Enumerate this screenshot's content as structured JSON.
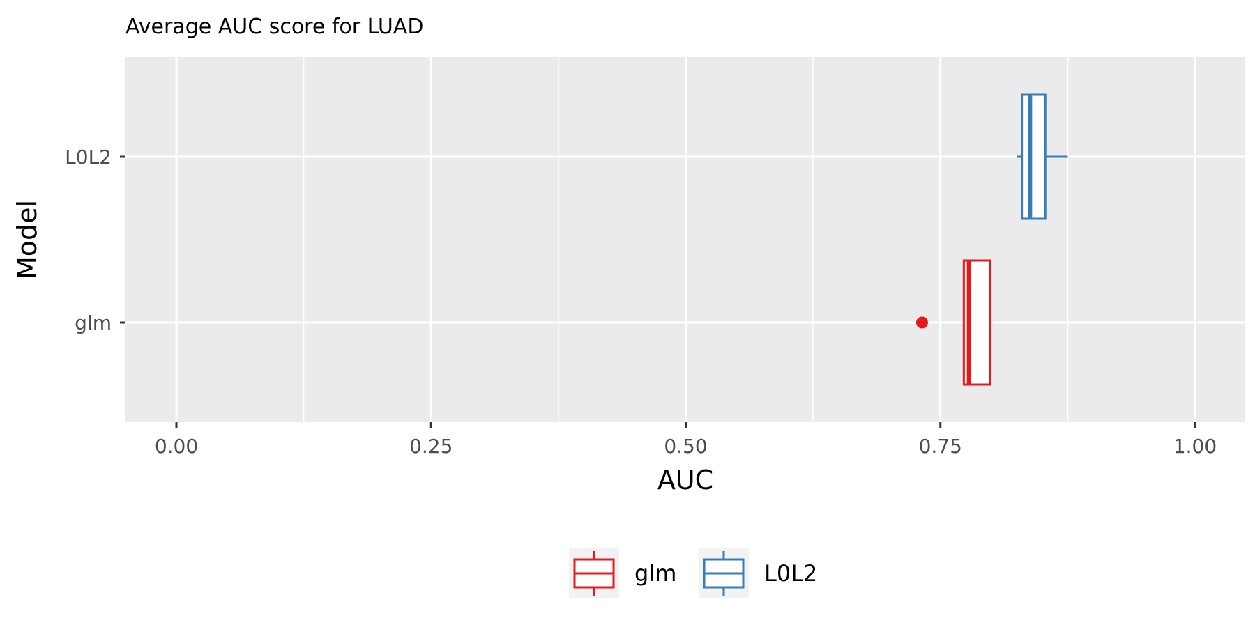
{
  "chart_data": {
    "type": "boxplot",
    "orientation": "horizontal",
    "title": "Average AUC score for LUAD",
    "xlabel": "AUC",
    "ylabel": "Model",
    "xlim": [
      0,
      1
    ],
    "x_ticks": [
      "0.00",
      "0.25",
      "0.50",
      "0.75",
      "1.00"
    ],
    "categories": [
      "glm",
      "L0L2"
    ],
    "grid": true,
    "legend_position": "bottom",
    "series": [
      {
        "name": "glm",
        "color": "#E41A1C",
        "whisker_low": 0.773,
        "q1": 0.773,
        "median": 0.778,
        "q3": 0.799,
        "whisker_high": 0.799,
        "outliers": [
          0.732
        ]
      },
      {
        "name": "L0L2",
        "color": "#377EB8",
        "whisker_low": 0.825,
        "q1": 0.83,
        "median": 0.838,
        "q3": 0.853,
        "whisker_high": 0.875,
        "outliers": []
      }
    ]
  }
}
